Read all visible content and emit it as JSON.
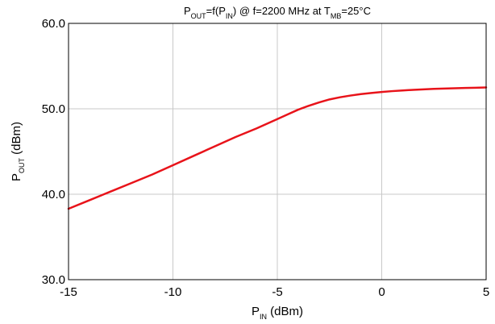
{
  "chart_data": {
    "type": "line",
    "title": {
      "parts": [
        {
          "text": "P",
          "sub": false
        },
        {
          "text": "OUT",
          "sub": true
        },
        {
          "text": "=f(P",
          "sub": false
        },
        {
          "text": "IN",
          "sub": true
        },
        {
          "text": ") @ f=2200 MHz at T",
          "sub": false
        },
        {
          "text": "MB",
          "sub": true
        },
        {
          "text": "=25°C",
          "sub": false
        }
      ]
    },
    "xlabel": {
      "parts": [
        {
          "text": "P",
          "sub": false
        },
        {
          "text": "IN",
          "sub": true
        },
        {
          "text": " (dBm)",
          "sub": false
        }
      ]
    },
    "ylabel": {
      "parts": [
        {
          "text": "P",
          "sub": false
        },
        {
          "text": "OUT",
          "sub": true
        },
        {
          "text": " (dBm)",
          "sub": false
        }
      ]
    },
    "xlim": [
      -15,
      5
    ],
    "ylim": [
      30,
      60
    ],
    "xticks": [
      -15,
      -10,
      -5,
      0,
      5
    ],
    "xtick_labels": [
      "-15",
      "-10",
      "-5",
      "0",
      "5"
    ],
    "yticks": [
      30,
      40,
      50,
      60
    ],
    "ytick_labels": [
      "30.0",
      "40.0",
      "50.0",
      "60.0"
    ],
    "grid": true,
    "legend": "none",
    "series": [
      {
        "color": "#e8131a",
        "x": [
          -15,
          -14,
          -13,
          -12,
          -11,
          -10,
          -9,
          -8,
          -7,
          -6,
          -5,
          -4.5,
          -4,
          -3.5,
          -3,
          -2.5,
          -2,
          -1.5,
          -1,
          -0.5,
          0,
          0.5,
          1,
          1.5,
          2,
          2.5,
          3,
          3.5,
          4,
          4.5,
          5
        ],
        "y": [
          38.3,
          39.3,
          40.3,
          41.3,
          42.3,
          43.4,
          44.5,
          45.6,
          46.7,
          47.7,
          48.8,
          49.35,
          49.9,
          50.35,
          50.75,
          51.1,
          51.35,
          51.55,
          51.72,
          51.85,
          51.97,
          52.07,
          52.15,
          52.22,
          52.28,
          52.33,
          52.37,
          52.41,
          52.44,
          52.47,
          52.5
        ]
      }
    ]
  }
}
